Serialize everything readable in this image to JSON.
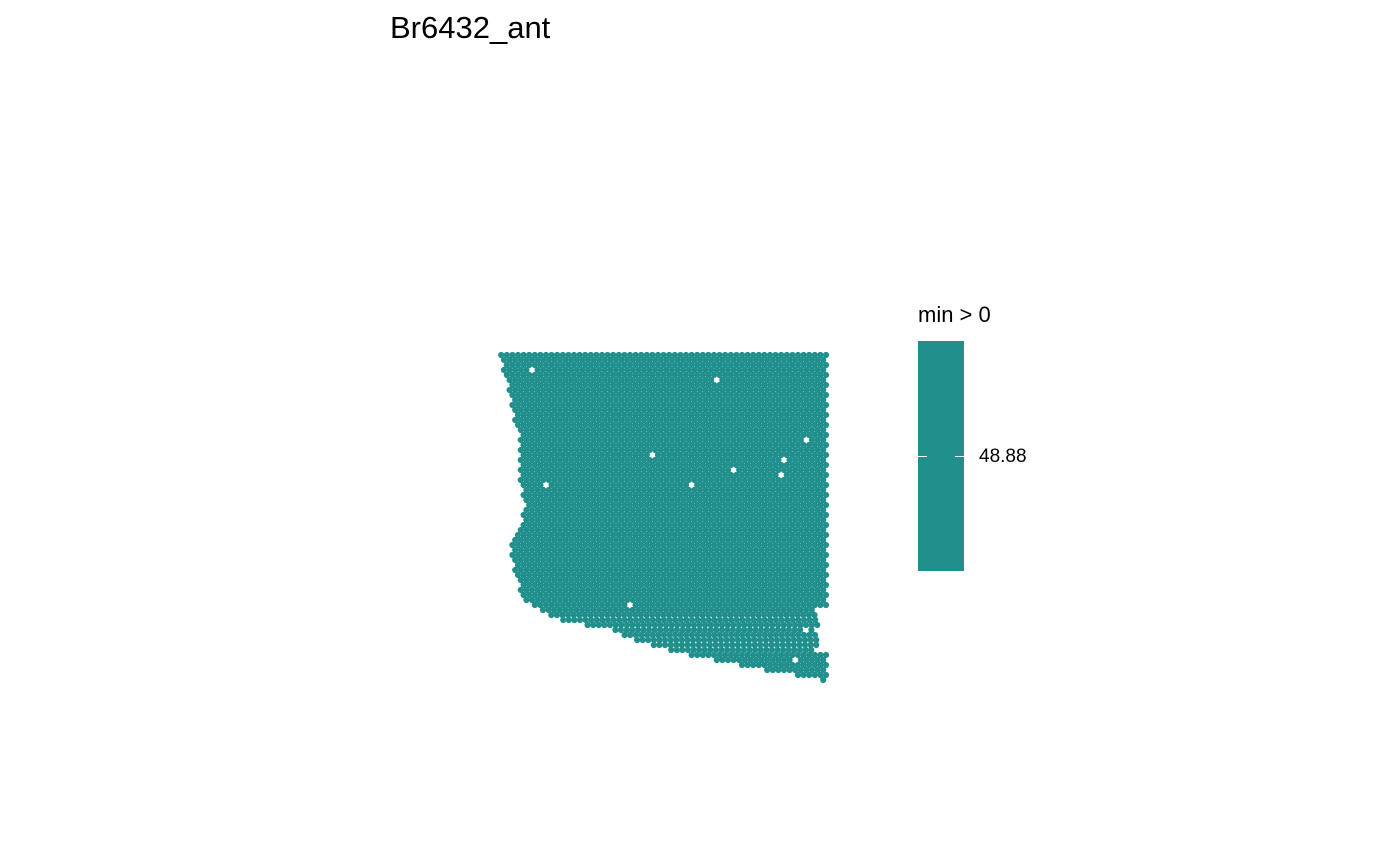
{
  "chart_data": {
    "type": "scatter",
    "title": "Br6432_ant",
    "xlabel": "",
    "ylabel": "",
    "grid": false,
    "legend": {
      "title": "min > 0",
      "placement": "right",
      "breaks": [
        48.88
      ],
      "labels": [
        "48.88"
      ]
    },
    "series": [
      {
        "values": [
          48.88
        ],
        "color": "#21908C"
      }
    ]
  },
  "colors": {
    "spot": "#21908C",
    "background": "#ffffff",
    "text": "#000000"
  }
}
